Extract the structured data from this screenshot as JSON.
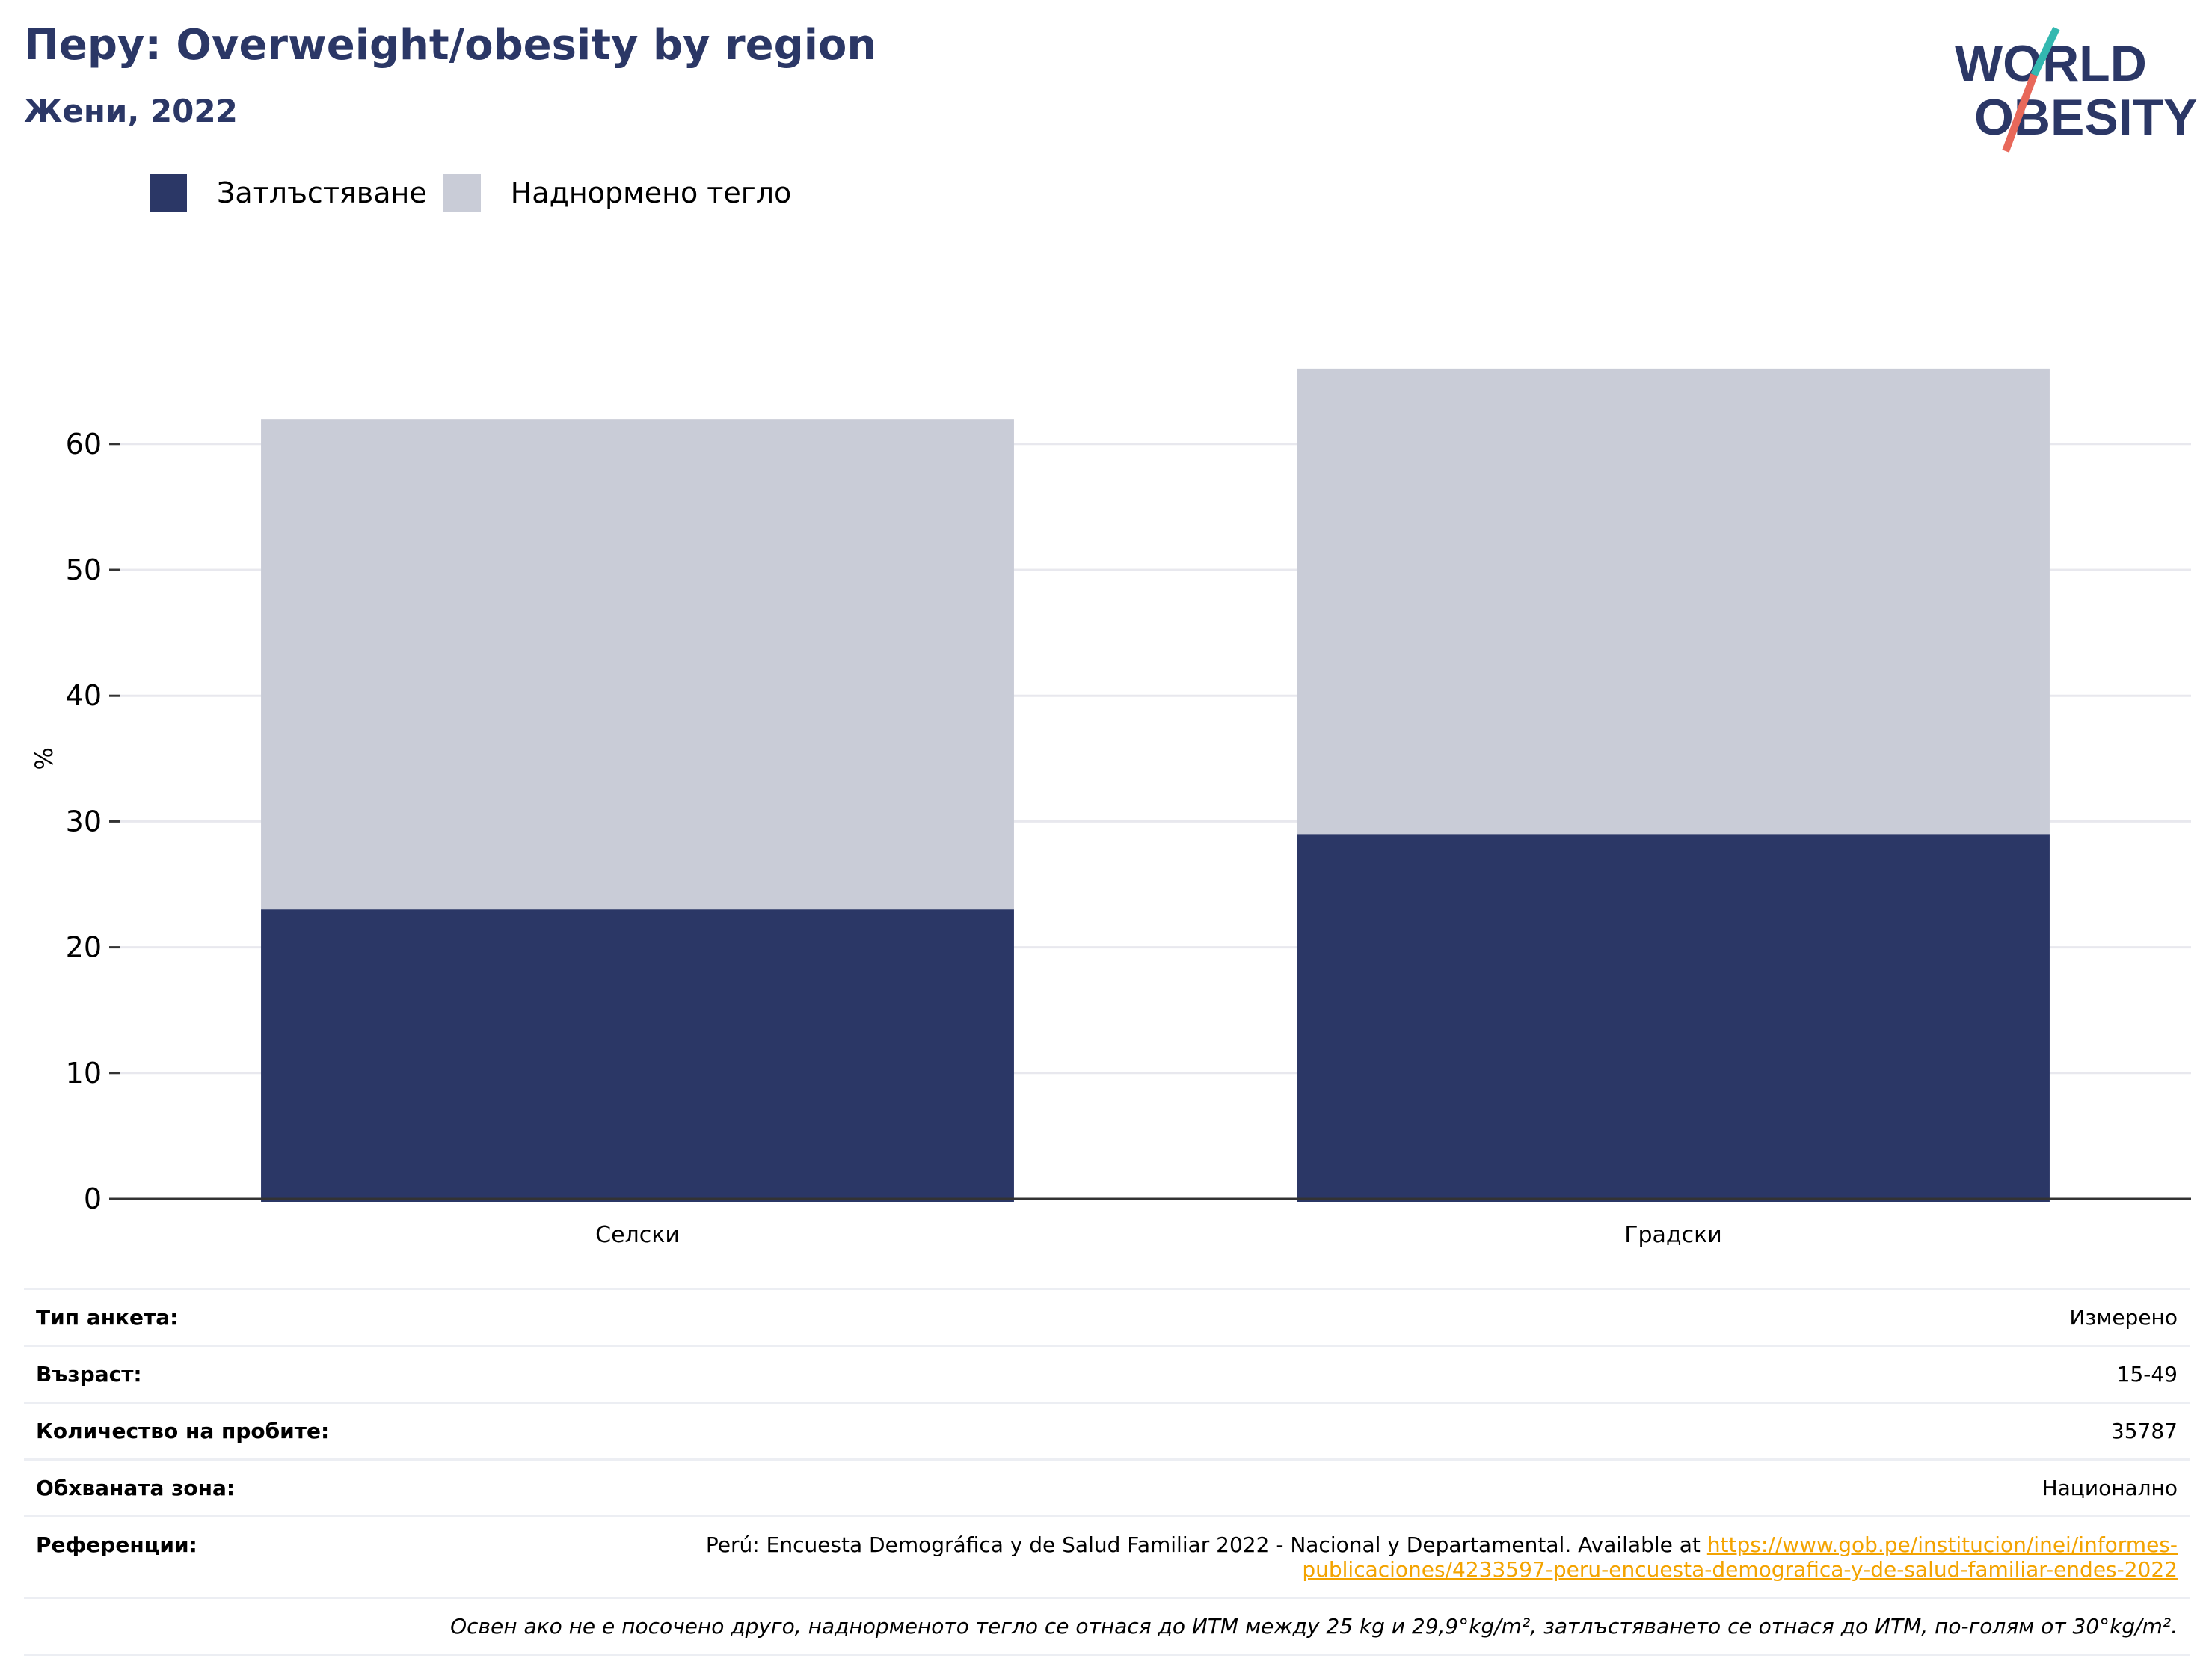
{
  "header": {
    "title": "Перу: Overweight/obesity by region",
    "subtitle": "Жени, 2022"
  },
  "logo": {
    "line1": "WORLD",
    "line2": "OBESITY",
    "colors": {
      "text": "#2b3766",
      "slash_top": "#33b8b0",
      "slash_bottom": "#e8685a"
    }
  },
  "colors": {
    "obesity": "#2b3766",
    "overweight": "#c9ccd7",
    "grid": "#e8e8ee",
    "axis": "#333333",
    "link": "#f3a300"
  },
  "chart_data": {
    "type": "bar",
    "stacked": true,
    "categories": [
      "Селски",
      "Градски"
    ],
    "series": [
      {
        "name": "Затлъстяване",
        "values": [
          23,
          29
        ]
      },
      {
        "name": "Наднормено тегло",
        "values": [
          39,
          37
        ]
      }
    ],
    "ylabel": "%",
    "xlabel": "",
    "ylim": [
      0,
      70
    ],
    "yticks": [
      0,
      10,
      20,
      30,
      40,
      50,
      60
    ],
    "grid": true,
    "legend_position": "top-left"
  },
  "meta": {
    "survey_type": {
      "label": "Тип анкета:",
      "value": "Измерено"
    },
    "age": {
      "label": "Възраст:",
      "value": "15-49"
    },
    "sample_size": {
      "label": "Количество на пробите:",
      "value": "35787"
    },
    "coverage": {
      "label": "Обхваната зона:",
      "value": "Национално"
    },
    "references": {
      "label": "Референции:",
      "text": "Perú: Encuesta Demográfica y de Salud Familiar 2022 - Nacional y Departamental. Available at",
      "link_line1": "https://www.gob.pe/institucion/inei/informes-",
      "link_line2": "publicaciones/4233597-peru-encuesta-demografica-y-de-salud-familiar-endes-2022"
    },
    "note": "Освен ако не е посочено друго, наднорменото тегло се отнася до ИТМ между 25 kg и 29,9°kg/m², затлъстяването се отнася до ИТМ, по-голям от 30°kg/m²."
  }
}
